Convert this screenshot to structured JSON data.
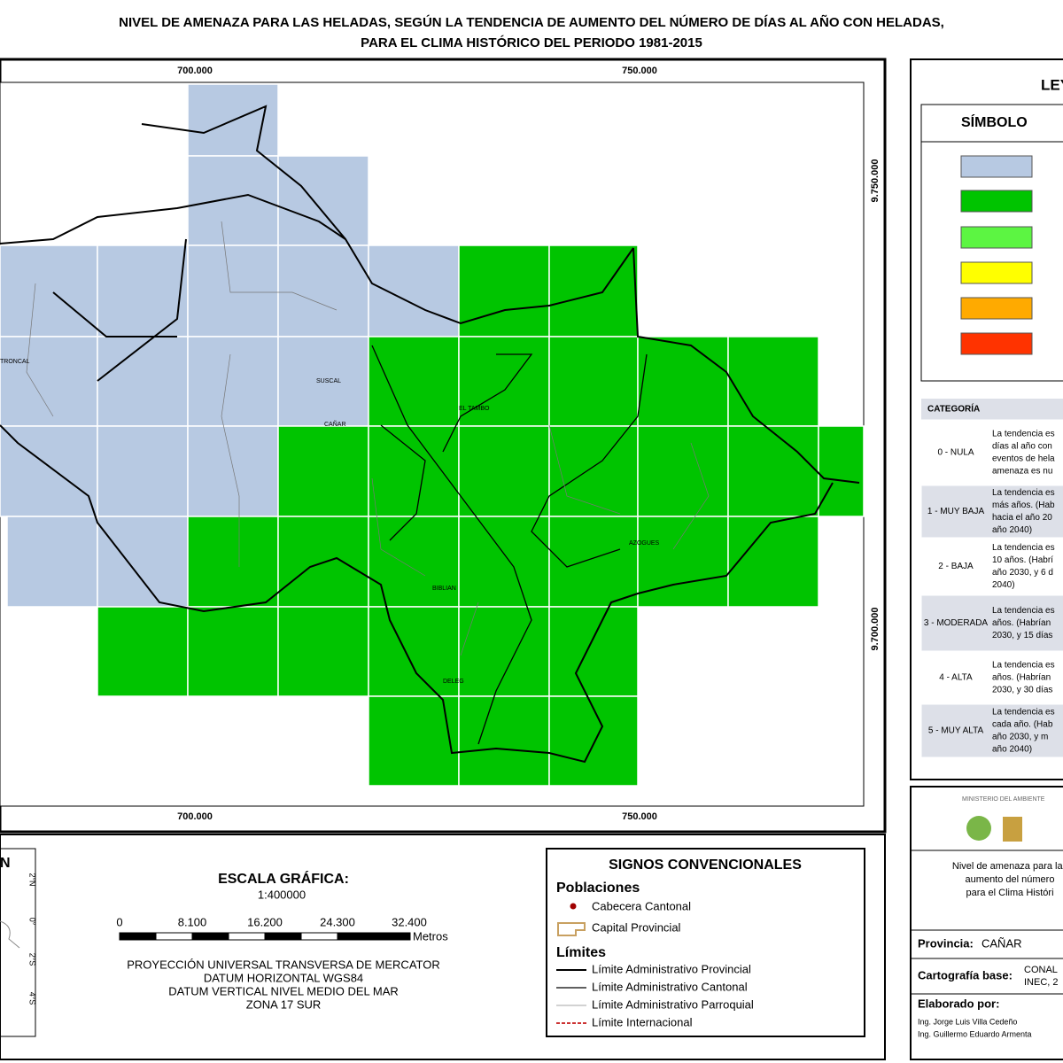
{
  "title": [
    "NIVEL DE AMENAZA PARA LAS HELADAS, SEGÚN LA TENDENCIA DE AUMENTO DEL NÚMERO DE DÍAS AL AÑO CON HELADAS,",
    "PARA EL CLIMA HISTÓRICO DEL PERIODO 1981-2015"
  ],
  "map": {
    "x_labels": [
      "700.000",
      "750.000"
    ],
    "y_labels": [
      "9.750.000",
      "9.700.000"
    ],
    "places": [
      "TRONCAL",
      "SUSCAL",
      "CAÑAR",
      "EL TAMBO",
      "AZOGUES",
      "BIBLIAN",
      "DELEG"
    ]
  },
  "legend": {
    "title": "LEYENDA",
    "symbol_header": "SÍMBOLO",
    "colors": [
      "#b7c9e2",
      "#00c400",
      "#5cf542",
      "#ffff00",
      "#ffaa00",
      "#ff3300"
    ],
    "category_header": "CATEGORÍA",
    "categories": [
      {
        "name": "0 - NULA",
        "description": [
          "La tendencia es",
          "días al año con",
          "eventos de hela",
          "amenaza es nu"
        ]
      },
      {
        "name": "1 - MUY BAJA",
        "description": [
          "La tendencia es",
          "más años. (Hab",
          "hacia el año 20",
          "año 2040)"
        ]
      },
      {
        "name": "2 - BAJA",
        "description": [
          "La tendencia es",
          "10 años. (Habrí",
          "año 2030, y 6 d",
          "2040)"
        ]
      },
      {
        "name": "3 - MODERADA",
        "description": [
          "La tendencia es",
          "años. (Habrían",
          "2030, y 15 días"
        ]
      },
      {
        "name": "4 - ALTA",
        "description": [
          "La tendencia es",
          "años. (Habrían",
          "2030, y 30 días"
        ]
      },
      {
        "name": "5 - MUY ALTA",
        "description": [
          "La tendencia es",
          "cada año. (Hab",
          "año 2030, y m",
          "año 2040)"
        ]
      }
    ]
  },
  "north": {
    "title": "N",
    "lat_labels": [
      "2°N",
      "0°",
      "2°S",
      "4°S"
    ]
  },
  "scale": {
    "title": "ESCALA GRÁFICA:",
    "ratio": "1:400000",
    "ticks": [
      "0",
      "8.100",
      "16.200",
      "24.300",
      "32.400"
    ],
    "unit": "Metros",
    "projection": [
      "PROYECCIÓN UNIVERSAL TRANSVERSA DE MERCATOR",
      "DATUM HORIZONTAL WGS84",
      "DATUM VERTICAL NIVEL MEDIO DEL MAR",
      "ZONA 17 SUR"
    ]
  },
  "conventions": {
    "title": "SIGNOS CONVENCIONALES",
    "populations": "Poblaciones",
    "items": [
      "Cabecera Cantonal",
      "Capital Provincial"
    ],
    "limits": "Límites",
    "limit_items": [
      "Límite Administrativo Provincial",
      "Límite Administrativo Cantonal",
      "Límite Administrativo Parroquial",
      "Límite Internacional"
    ]
  },
  "credits": {
    "ministry": "MINISTERIO DEL AMBIENTE",
    "description": [
      "Nivel de amenaza para las",
      "aumento del número",
      "para el Clima Históri"
    ],
    "province_label": "Provincia:",
    "province": "CAÑAR",
    "base_label": "Cartografía base:",
    "base": [
      "CONAL",
      "INEC, 2"
    ],
    "made_by": "Elaborado por:",
    "authors": [
      "Ing. Jorge Luis Villa Cedeño",
      "Ing. Guillermo Eduardo Armenta"
    ]
  }
}
